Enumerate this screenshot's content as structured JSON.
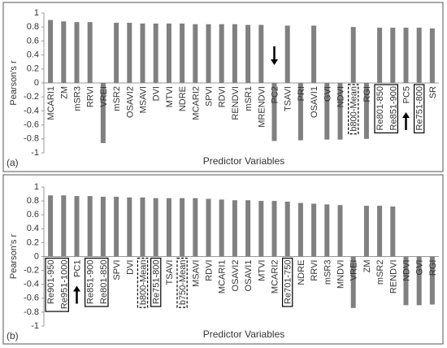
{
  "chart_data": [
    {
      "type": "bar",
      "panel_label": "(a)",
      "y_label": "Pearson's r",
      "x_label": "Predictor Variables",
      "categories": [
        "MCARI1",
        "ZM",
        "mSR3",
        "RRVI",
        "VREI",
        "mSR2",
        "OSAVI2",
        "MSAVI",
        "DVI",
        "MTVI",
        "NDRE",
        "MCARI2",
        "SPVI",
        "RDVI",
        "RENDVI",
        "mSR1",
        "MRENDVI",
        "PC2",
        "TSAVI",
        "PRI",
        "OSAVI1",
        "GVI",
        "NDVI",
        "b800-Mean",
        "RGI",
        "Re801-850",
        "Re851-900",
        "PC5",
        "Re751-800",
        "SR"
      ],
      "values": [
        0.9,
        0.88,
        0.87,
        0.87,
        -0.86,
        0.86,
        0.86,
        0.85,
        0.85,
        0.85,
        0.85,
        0.84,
        0.84,
        0.84,
        0.84,
        0.83,
        0.83,
        -0.83,
        0.82,
        -0.82,
        0.82,
        -0.81,
        -0.81,
        0.8,
        -0.8,
        0.79,
        0.79,
        0.79,
        0.79,
        0.78
      ],
      "color": "#808080",
      "ylim": [
        -1,
        1
      ],
      "yticks": [
        -1,
        -0.8,
        -0.6,
        -0.4,
        -0.2,
        0,
        0.2,
        0.4,
        0.6,
        0.8,
        1
      ],
      "boxes": [
        {
          "indices": [
            23
          ],
          "style": "dashed"
        },
        {
          "indices": [
            25,
            26
          ],
          "style": "solid"
        },
        {
          "indices": [
            28
          ],
          "style": "solid"
        }
      ],
      "arrows": [
        {
          "index": 17,
          "direction": "down"
        },
        {
          "index": 27,
          "direction": "up"
        }
      ]
    },
    {
      "type": "bar",
      "panel_label": "(b)",
      "y_label": "Pearson's r",
      "x_label": "Predictor Variables",
      "categories": [
        "Re901-950",
        "Re951-1000",
        "PC1",
        "Re851-900",
        "Re801-850",
        "SPVI",
        "DVI",
        "b800-Mean",
        "Re751-800",
        "TSAVI",
        "b750-Mean",
        "MSAVI",
        "RDVI",
        "MCARI1",
        "OSAVI2",
        "OSAVI1",
        "MTVI",
        "MCARI2",
        "Re701-750",
        "NDRE",
        "RRVI",
        "mSR3",
        "MNDVI",
        "VREI",
        "ZM",
        "mSR2",
        "RENDVI",
        "NDVI",
        "GVI",
        "RGI"
      ],
      "values": [
        0.88,
        0.88,
        0.87,
        0.87,
        0.86,
        0.86,
        0.85,
        0.85,
        0.84,
        0.84,
        0.84,
        0.84,
        0.83,
        0.82,
        0.81,
        0.81,
        0.8,
        0.8,
        0.79,
        0.77,
        0.76,
        0.75,
        0.74,
        -0.74,
        0.73,
        0.73,
        0.72,
        -0.7,
        -0.7,
        -0.69
      ],
      "color": "#808080",
      "ylim": [
        -1,
        1
      ],
      "yticks": [
        -1,
        -0.8,
        -0.6,
        -0.4,
        -0.2,
        0,
        0.2,
        0.4,
        0.6,
        0.8,
        1
      ],
      "boxes": [
        {
          "indices": [
            0,
            1
          ],
          "style": "solid"
        },
        {
          "indices": [
            3,
            4
          ],
          "style": "solid"
        },
        {
          "indices": [
            7
          ],
          "style": "dashed"
        },
        {
          "indices": [
            8
          ],
          "style": "solid"
        },
        {
          "indices": [
            10
          ],
          "style": "dashed"
        },
        {
          "indices": [
            18
          ],
          "style": "solid"
        }
      ],
      "arrows": [
        {
          "index": 2,
          "direction": "up"
        }
      ]
    }
  ]
}
